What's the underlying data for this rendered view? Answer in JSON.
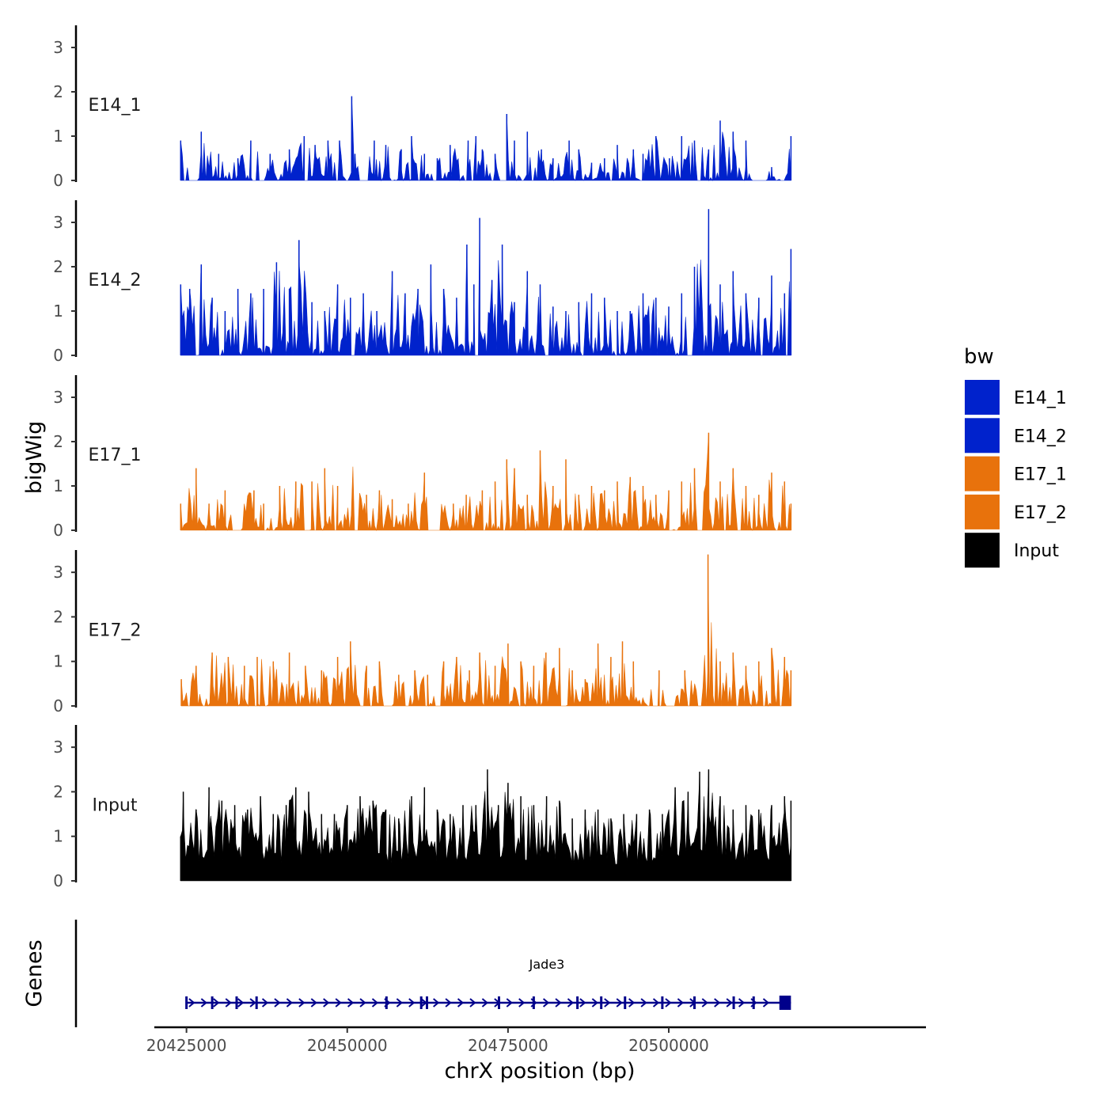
{
  "chart_data": {
    "type": "area",
    "xlabel": "chrX position (bp)",
    "ylabel": "bigWig",
    "genes_label": "Genes",
    "xlim": [
      20420000,
      20540000
    ],
    "x_ticks": [
      20425000,
      20450000,
      20475000,
      20500000
    ],
    "ylim": [
      0,
      3.5
    ],
    "y_ticks": [
      0,
      1,
      2,
      3
    ],
    "legend": {
      "title": "bw",
      "entries": [
        {
          "label": "E14_1",
          "color": "#0022CC"
        },
        {
          "label": "E14_2",
          "color": "#0022CC"
        },
        {
          "label": "E17_1",
          "color": "#E8720C"
        },
        {
          "label": "E17_2",
          "color": "#E8720C"
        },
        {
          "label": "Input",
          "color": "#000000"
        }
      ]
    },
    "series": [
      {
        "name": "E14_1",
        "color": "#0022CC",
        "x": [
          20424100,
          20426100,
          20427300,
          20430000,
          20433000,
          20435000,
          20438000,
          20441000,
          20443300,
          20445000,
          20447000,
          20448800,
          20450700,
          20451200,
          20453000,
          20454200,
          20456000,
          20458400,
          20460000,
          20462000,
          20464000,
          20466000,
          20468800,
          20470000,
          20471000,
          20473000,
          20474800,
          20476000,
          20478000,
          20480200,
          20482000,
          20484500,
          20486000,
          20488000,
          20490000,
          20492000,
          20494500,
          20496000,
          20498000,
          20500100,
          20502000,
          20504000,
          20506200,
          20508000,
          20510000,
          20512000,
          20513500,
          20516000,
          20518000,
          20519000
        ],
        "y": [
          0.9,
          1.0,
          1.1,
          0.6,
          0.5,
          0.9,
          0.6,
          0.7,
          1.0,
          0.8,
          0.9,
          0.9,
          1.9,
          0.6,
          0.5,
          0.9,
          0.8,
          0.7,
          1.0,
          0.6,
          0.5,
          0.8,
          0.9,
          1.0,
          0.7,
          0.6,
          1.5,
          0.9,
          1.1,
          0.7,
          0.5,
          0.9,
          0.7,
          0.4,
          0.5,
          0.8,
          0.7,
          0.6,
          1.0,
          0.5,
          1.0,
          0.9,
          0.7,
          1.35,
          1.1,
          0.9,
          0.7,
          0.3,
          0.4,
          1.0
        ],
        "gaps": [
          [
            20425200,
            20426800
          ],
          [
            20436300,
            20437300
          ],
          [
            20451700,
            20453000
          ],
          [
            20512900,
            20515300
          ],
          [
            20517300,
            20518000
          ]
        ]
      },
      {
        "name": "E14_2",
        "color": "#0022CC",
        "x": [
          20424100,
          20425500,
          20427300,
          20429000,
          20431000,
          20433000,
          20435000,
          20437000,
          20439000,
          20441000,
          20442500,
          20444500,
          20446500,
          20448500,
          20450500,
          20452500,
          20454600,
          20457000,
          20459000,
          20461000,
          20463000,
          20465000,
          20467000,
          20468600,
          20469700,
          20470600,
          20472500,
          20474100,
          20476000,
          20478000,
          20480000,
          20482000,
          20484000,
          20486000,
          20488000,
          20490000,
          20492000,
          20494000,
          20496000,
          20498000,
          20500000,
          20502000,
          20504000,
          20506200,
          20508000,
          20510000,
          20512000,
          20514000,
          20516000,
          20518000,
          20519000
        ],
        "y": [
          1.6,
          1.5,
          2.05,
          1.3,
          1.0,
          1.5,
          1.4,
          1.5,
          2.1,
          1.5,
          2.6,
          1.2,
          1.0,
          1.6,
          1.3,
          1.4,
          1.0,
          1.9,
          1.4,
          1.5,
          2.05,
          1.5,
          1.3,
          2.5,
          1.6,
          3.1,
          1.7,
          2.5,
          1.2,
          1.9,
          1.6,
          1.1,
          1.0,
          1.2,
          1.4,
          1.3,
          1.0,
          1.0,
          1.4,
          1.3,
          1.1,
          1.4,
          2.0,
          3.3,
          1.6,
          1.9,
          1.4,
          1.3,
          1.8,
          1.4,
          2.4
        ],
        "gaps": []
      },
      {
        "name": "E17_1",
        "color": "#E8720C",
        "x": [
          20424100,
          20426500,
          20428500,
          20431000,
          20433000,
          20435500,
          20437000,
          20439500,
          20442000,
          20444500,
          20446500,
          20448500,
          20451000,
          20453000,
          20455000,
          20457000,
          20459500,
          20462000,
          20464500,
          20466500,
          20468500,
          20471000,
          20473000,
          20474800,
          20476000,
          20478000,
          20480000,
          20482000,
          20484000,
          20486000,
          20488000,
          20490000,
          20492000,
          20494000,
          20496000,
          20498000,
          20500000,
          20502000,
          20504000,
          20506200,
          20508000,
          20510000,
          20512000,
          20514000,
          20516000,
          20518000,
          20519000
        ],
        "y": [
          0.6,
          1.4,
          0.6,
          0.9,
          1.1,
          0.9,
          0.6,
          1.0,
          1.1,
          1.1,
          1.4,
          1.0,
          1.6,
          0.8,
          0.9,
          0.7,
          0.6,
          1.3,
          0.9,
          0.6,
          0.8,
          0.9,
          1.1,
          1.6,
          1.4,
          0.8,
          1.8,
          1.0,
          1.6,
          0.8,
          1.0,
          0.9,
          1.1,
          1.2,
          1.0,
          0.8,
          0.9,
          1.1,
          1.4,
          2.2,
          1.1,
          1.4,
          1.0,
          0.8,
          1.3,
          1.1,
          0.6
        ],
        "gaps": [
          [
            20432200,
            20433500
          ],
          [
            20450900,
            20451700
          ],
          [
            20462500,
            20464600
          ]
        ]
      },
      {
        "name": "E17_2",
        "color": "#E8720C",
        "x": [
          20424200,
          20426500,
          20429000,
          20431500,
          20434000,
          20436000,
          20438500,
          20441000,
          20443500,
          20446000,
          20448500,
          20450500,
          20453000,
          20455000,
          20458000,
          20460500,
          20462500,
          20465000,
          20467000,
          20469000,
          20470600,
          20473000,
          20475000,
          20477000,
          20479000,
          20480900,
          20483000,
          20485000,
          20487000,
          20489000,
          20491000,
          20492800,
          20494500,
          20496500,
          20498500,
          20500500,
          20502500,
          20504500,
          20506100,
          20508000,
          20510000,
          20512000,
          20514000,
          20516000,
          20518000,
          20519000
        ],
        "y": [
          0.6,
          0.9,
          1.2,
          1.1,
          0.9,
          1.1,
          1.0,
          1.2,
          0.9,
          0.8,
          1.1,
          1.45,
          0.9,
          1.0,
          0.7,
          0.8,
          0.7,
          1.0,
          1.1,
          0.8,
          1.2,
          0.9,
          1.4,
          1.0,
          0.9,
          1.2,
          1.3,
          0.8,
          0.6,
          1.4,
          1.1,
          1.45,
          1.0,
          0.7,
          0.8,
          1.1,
          0.8,
          0.6,
          3.4,
          1.0,
          1.2,
          0.9,
          1.0,
          1.3,
          1.1,
          0.8
        ],
        "gaps": [
          [
            20455800,
            20457200
          ],
          [
            20459000,
            20459500
          ],
          [
            20463600,
            20464700
          ],
          [
            20483700,
            20484200
          ],
          [
            20496500,
            20497200
          ],
          [
            20499600,
            20500800
          ],
          [
            20504500,
            20505300
          ]
        ]
      },
      {
        "name": "Input",
        "color": "#000000",
        "x": [
          20424100,
          20424500,
          20426500,
          20428500,
          20430500,
          20432500,
          20434500,
          20436500,
          20438500,
          20440500,
          20442000,
          20444000,
          20446000,
          20448000,
          20450000,
          20452000,
          20454000,
          20456000,
          20458000,
          20460000,
          20462000,
          20464000,
          20466000,
          20468000,
          20470000,
          20471800,
          20473500,
          20475000,
          20477000,
          20479000,
          20481000,
          20483000,
          20485000,
          20487000,
          20489000,
          20491000,
          20493000,
          20495000,
          20497000,
          20499000,
          20501000,
          20503000,
          20504800,
          20506200,
          20508000,
          20510000,
          20512000,
          20514000,
          20516000,
          20518000,
          20519000
        ],
        "y": [
          1.0,
          2.0,
          1.6,
          2.1,
          1.8,
          1.7,
          1.6,
          1.9,
          1.5,
          1.7,
          2.1,
          2.0,
          1.5,
          1.5,
          1.7,
          1.9,
          1.8,
          1.6,
          1.4,
          1.9,
          2.1,
          1.6,
          1.5,
          1.7,
          1.7,
          2.5,
          1.7,
          2.2,
          1.9,
          1.7,
          1.9,
          1.8,
          1.4,
          1.6,
          1.6,
          1.4,
          1.5,
          1.5,
          1.6,
          1.5,
          2.1,
          2.0,
          2.45,
          2.5,
          1.9,
          1.6,
          1.7,
          1.6,
          1.7,
          1.9,
          1.8
        ],
        "gaps": []
      }
    ],
    "gene": {
      "name": "Jade3",
      "strand": "+",
      "start": 20425000,
      "end": 20519000,
      "color": "#00008B",
      "exons": [
        20425000,
        20429000,
        20432800,
        20435900,
        20456100,
        20461500,
        20462400,
        20473600,
        20479000,
        20485800,
        20489500,
        20493200,
        20499000,
        20504000,
        20510100,
        20513200
      ],
      "last_exon": [
        20517200,
        20519000
      ]
    }
  }
}
